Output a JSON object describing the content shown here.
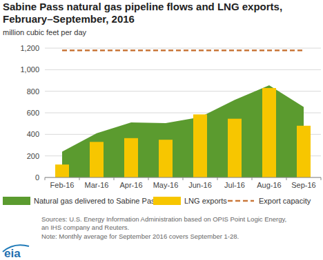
{
  "chart_data": {
    "type": "bar",
    "title": [
      "Sabine Pass natural gas pipeline flows and LNG exports,",
      "February–September, 2016"
    ],
    "subtitle": "million cubic feet per day",
    "categories": [
      "Feb-16",
      "Mar-16",
      "Apr-16",
      "May-16",
      "Jun-16",
      "Jul-16",
      "Aug-16",
      "Sep-16"
    ],
    "series": [
      {
        "name": "Natural gas delivered to Sabine Pass",
        "type": "area",
        "color": "#5b9b2f",
        "values": [
          240,
          410,
          510,
          505,
          560,
          720,
          855,
          655
        ]
      },
      {
        "name": "LNG exports",
        "type": "bar",
        "color": "#f7c600",
        "values": [
          120,
          330,
          365,
          350,
          585,
          545,
          830,
          480
        ]
      },
      {
        "name": "Export capacity",
        "type": "line",
        "color": "#c9773a",
        "line_style": "dashed",
        "values": [
          1180,
          1180,
          1180,
          1180,
          1180,
          1180,
          1180,
          1180
        ]
      }
    ],
    "ylim": [
      0,
      1200
    ],
    "yticks": [
      0,
      200,
      400,
      600,
      800,
      {
        "value": 1000,
        "label": "1,000"
      },
      {
        "value": 1200,
        "label": "1,200"
      }
    ],
    "grid": true,
    "legend": "bottom",
    "notes": [
      "Sources: U.S. Energy Information Administration based on OPIS Point Logic Energy,",
      "an IHS company and Reuters.",
      "Note: Monthly average for September 2016 covers September 1-28."
    ],
    "logo": "eia"
  }
}
